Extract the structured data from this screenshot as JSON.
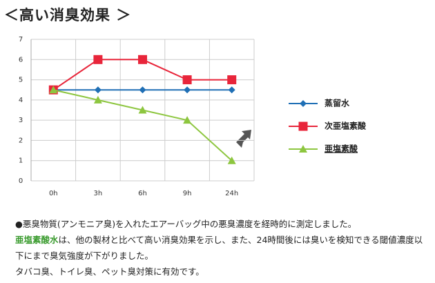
{
  "chart_data": {
    "type": "line",
    "title": "＜高い消臭効果 ＞",
    "categories": [
      "0h",
      "3h",
      "6h",
      "9h",
      "24h"
    ],
    "series": [
      {
        "name": "蒸留水",
        "color": "#1f6fb5",
        "marker": "diamond",
        "values": [
          4.5,
          4.5,
          4.5,
          4.5,
          4.5
        ]
      },
      {
        "name": "次亜塩素酸",
        "color": "#e8253a",
        "marker": "square",
        "values": [
          4.5,
          6,
          6,
          5,
          5
        ]
      },
      {
        "name": "亜塩素酸",
        "color": "#8dc63f",
        "marker": "triangle",
        "values": [
          4.5,
          4,
          3.5,
          3,
          1
        ]
      }
    ],
    "ylim": [
      0,
      7
    ],
    "yticks": [
      0,
      1,
      2,
      3,
      4,
      5,
      6,
      7
    ],
    "grid": true,
    "legend": "right",
    "notes": {
      "line1": "●悪臭物質(アンモニア臭)を入れたエアーバッグ中の悪臭濃度を経時的に測定しました。",
      "highlight": "亜塩素酸水",
      "line2": "は、他の製材と比べて高い消臭効果を示し、また、24時間後には臭いを検知できる閾値濃度以下にまで臭気強度が下がりました。",
      "line3": "タバコ臭、トイレ臭、ペット臭対策に有効です。"
    }
  }
}
